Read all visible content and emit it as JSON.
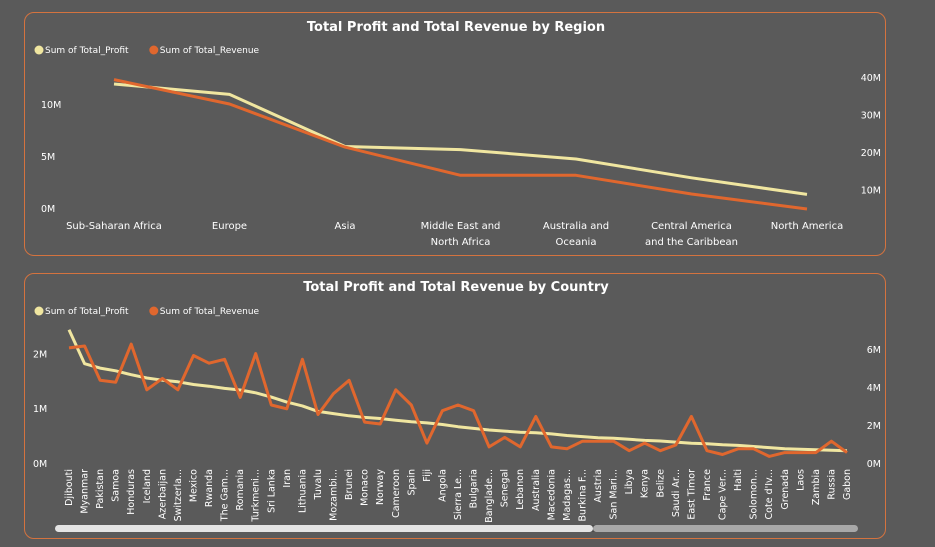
{
  "colors": {
    "profit": "#f0e6a0",
    "revenue": "#e0672e",
    "border": "#d4733f",
    "background": "#5a5a5a"
  },
  "chart_data": [
    {
      "type": "line",
      "title": "Total Profit and Total Revenue by Region",
      "legend": {
        "placement": "top-left",
        "items": [
          "Sum of Total_Profit",
          "Sum of Total_Revenue"
        ]
      },
      "categories": [
        [
          "Sub-Saharan Africa"
        ],
        [
          "Europe"
        ],
        [
          "Asia"
        ],
        [
          "Middle East and",
          "North Africa"
        ],
        [
          "Australia and",
          "Oceania"
        ],
        [
          "Central America",
          "and the Caribbean"
        ],
        [
          "North America"
        ]
      ],
      "series": [
        {
          "name": "Sum of Total_Profit",
          "axis": "left",
          "values": [
            12.0,
            11.0,
            6.0,
            5.7,
            4.8,
            3.0,
            1.4
          ]
        },
        {
          "name": "Sum of Total_Revenue",
          "axis": "right",
          "values": [
            39.5,
            33.0,
            21.5,
            14.0,
            14.0,
            9.0,
            5.0
          ]
        }
      ],
      "y_left": {
        "ticks": [
          "0M",
          "5M",
          "10M"
        ],
        "tick_values": [
          0,
          5,
          10
        ],
        "range": [
          0,
          14.4
        ]
      },
      "y_right": {
        "ticks": [
          "10M",
          "20M",
          "30M",
          "40M"
        ],
        "tick_values": [
          10,
          20,
          30,
          40
        ],
        "range": [
          5.0,
          45.0
        ]
      },
      "grid": false
    },
    {
      "type": "line",
      "title": "Total Profit and Total Revenue by Country",
      "legend": {
        "placement": "top-left",
        "items": [
          "Sum of Total_Profit",
          "Sum of Total_Revenue"
        ]
      },
      "categories": [
        "Djibouti",
        "Myanmar",
        "Pakistan",
        "Samoa",
        "Honduras",
        "Iceland",
        "Azerbaijan",
        "Switzerla...",
        "Mexico",
        "Rwanda",
        "The Gam...",
        "Romania",
        "Turkmeni...",
        "Sri Lanka",
        "Iran",
        "Lithuania",
        "Tuvalu",
        "Mozambi...",
        "Brunei",
        "Monaco",
        "Norway",
        "Cameroon",
        "Spain",
        "Fiji",
        "Angola",
        "Sierra Le...",
        "Bulgaria",
        "Banglade...",
        "Senegal",
        "Lebanon",
        "Australia",
        "Macedonia",
        "Madagas...",
        "Burkina F...",
        "Austria",
        "San Mari...",
        "Libya",
        "Kenya",
        "Belize",
        "Saudi Ar...",
        "East Timor",
        "France",
        "Cape Ver...",
        "Haiti",
        "Solomon...",
        "Cote d'Iv...",
        "Grenada",
        "Laos",
        "Zambia",
        "Russia",
        "Gabon"
      ],
      "series": [
        {
          "name": "Sum of Total_Profit",
          "axis": "left",
          "values": [
            2.45,
            1.83,
            1.75,
            1.7,
            1.63,
            1.57,
            1.53,
            1.5,
            1.45,
            1.42,
            1.38,
            1.35,
            1.3,
            1.22,
            1.13,
            1.06,
            0.96,
            0.92,
            0.88,
            0.85,
            0.83,
            0.8,
            0.77,
            0.75,
            0.72,
            0.68,
            0.65,
            0.62,
            0.6,
            0.58,
            0.57,
            0.55,
            0.52,
            0.5,
            0.48,
            0.47,
            0.45,
            0.43,
            0.42,
            0.4,
            0.38,
            0.37,
            0.35,
            0.34,
            0.32,
            0.3,
            0.28,
            0.27,
            0.26,
            0.25,
            0.24
          ]
        },
        {
          "name": "Sum of Total_Revenue",
          "axis": "right",
          "values": [
            6.1,
            6.2,
            4.4,
            4.3,
            6.3,
            3.9,
            4.5,
            3.9,
            5.7,
            5.3,
            5.5,
            3.5,
            5.8,
            3.1,
            2.9,
            5.5,
            2.6,
            3.7,
            4.4,
            2.2,
            2.1,
            3.9,
            3.1,
            1.1,
            2.8,
            3.1,
            2.8,
            0.9,
            1.4,
            0.9,
            2.5,
            0.9,
            0.8,
            1.2,
            1.2,
            1.2,
            0.7,
            1.1,
            0.7,
            1.0,
            2.5,
            0.7,
            0.5,
            0.8,
            0.8,
            0.4,
            0.6,
            0.6,
            0.6,
            1.2,
            0.6
          ]
        }
      ],
      "y_left": {
        "ticks": [
          "0M",
          "1M",
          "2M"
        ],
        "tick_values": [
          0,
          1,
          2
        ],
        "range": [
          0,
          2.5
        ]
      },
      "y_right": {
        "ticks": [
          "0M",
          "2M",
          "4M",
          "6M"
        ],
        "tick_values": [
          0,
          2,
          4,
          6
        ],
        "range": [
          0,
          7.2
        ]
      },
      "grid": false
    }
  ]
}
